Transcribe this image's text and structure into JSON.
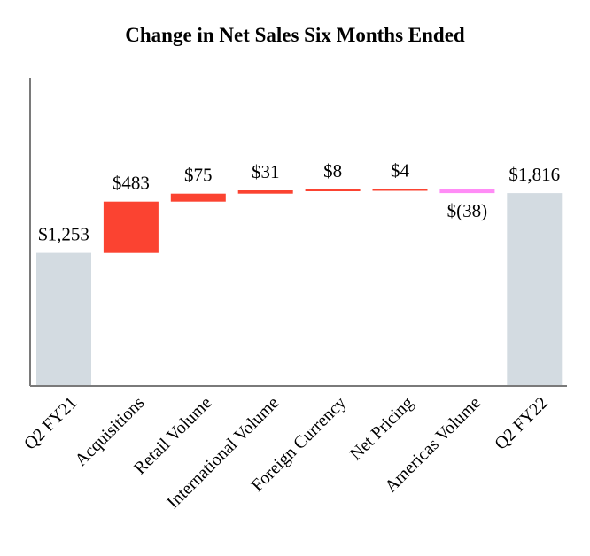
{
  "chart_data": {
    "type": "bar",
    "title": "Change in Net Sales Six Months Ended",
    "xlabel": "",
    "ylabel": "",
    "categories": [
      "Q2 FY21",
      "Acquisitions",
      "Retail Volume",
      "International Volume",
      "Foreign Currency",
      "Net Pricing",
      "Americas Volume",
      "Q2 FY22"
    ],
    "values": [
      1253,
      483,
      75,
      31,
      8,
      4,
      -38,
      1816
    ],
    "labels": [
      "$1,253",
      "$483",
      "$75",
      "$31",
      "$8",
      "$4",
      "$(38)",
      "$1,816"
    ],
    "kinds": [
      "total",
      "increase",
      "increase",
      "increase",
      "increase",
      "increase",
      "decrease",
      "total"
    ],
    "ylim": [
      0,
      1900
    ],
    "grid": false,
    "colors": {
      "total": "#d3dbe1",
      "increase": "#fb4331",
      "decrease": "#ff8cf6",
      "axis": "#7a7a7a"
    }
  }
}
